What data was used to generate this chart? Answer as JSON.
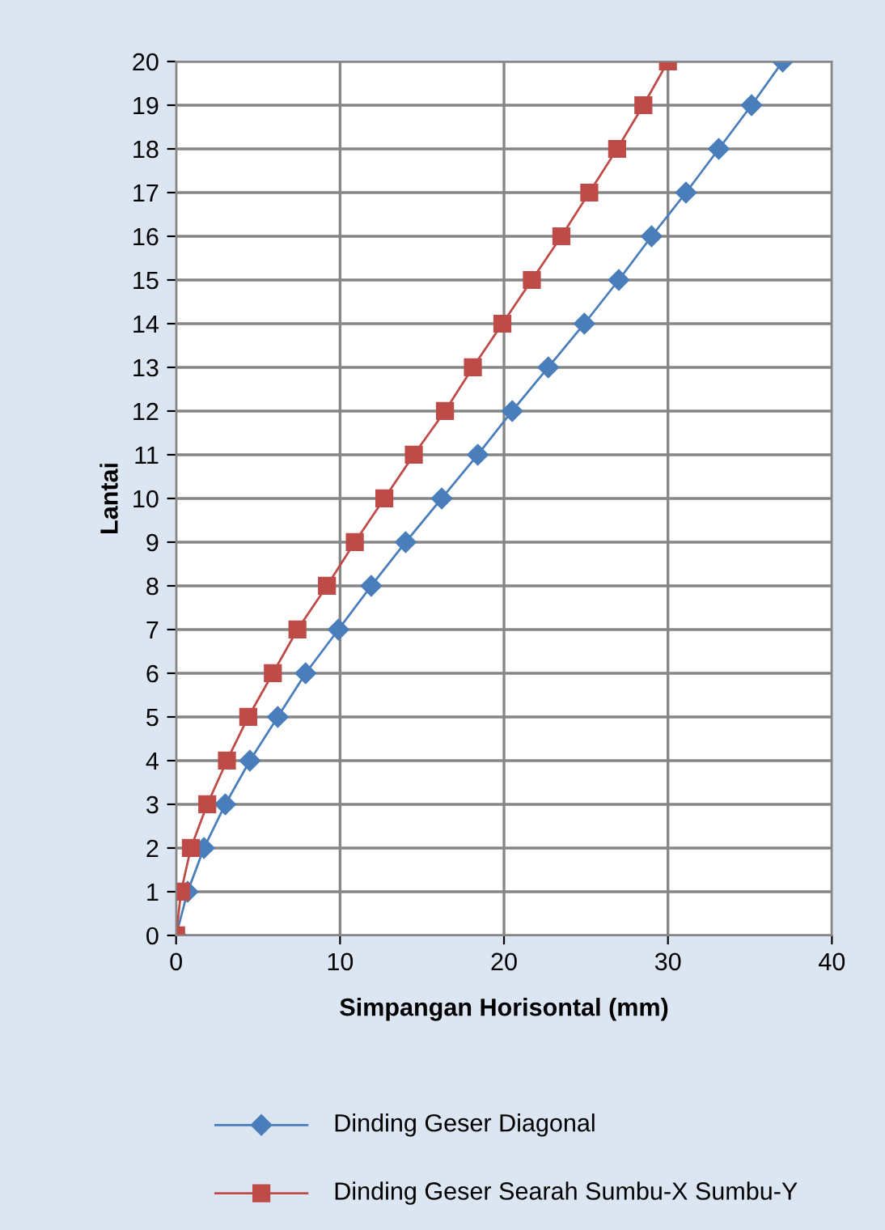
{
  "chart_data": {
    "type": "line",
    "xlabel": "Simpangan Horisontal (mm)",
    "ylabel": "Lantai",
    "xlim": [
      0,
      40
    ],
    "xticks": [
      0,
      10,
      20,
      30,
      40
    ],
    "ylim": [
      0,
      20
    ],
    "yticks": [
      0,
      1,
      2,
      3,
      4,
      5,
      6,
      7,
      8,
      9,
      10,
      11,
      12,
      13,
      14,
      15,
      16,
      17,
      18,
      19,
      20
    ],
    "grid": true,
    "legend": "bottom",
    "series": [
      {
        "name": "Dinding Geser Diagonal",
        "color": "#4a7ebb",
        "marker": "diamond",
        "x": [
          0,
          0.7,
          1.7,
          3.0,
          4.5,
          6.2,
          7.9,
          9.9,
          11.9,
          14.0,
          16.2,
          18.4,
          20.5,
          22.7,
          24.9,
          27.0,
          29.0,
          31.1,
          33.1,
          35.1,
          37.0
        ],
        "values": [
          0,
          1,
          2,
          3,
          4,
          5,
          6,
          7,
          8,
          9,
          10,
          11,
          12,
          13,
          14,
          15,
          16,
          17,
          18,
          19,
          20
        ]
      },
      {
        "name": "Dinding Geser Searah Sumbu-X Sumbu-Y",
        "color": "#be4b48",
        "marker": "square",
        "x": [
          0,
          0.3,
          0.9,
          1.9,
          3.1,
          4.4,
          5.9,
          7.4,
          9.2,
          10.9,
          12.7,
          14.5,
          16.4,
          18.1,
          19.9,
          21.7,
          23.5,
          25.2,
          26.9,
          28.5,
          30.0
        ],
        "values": [
          0,
          1,
          2,
          3,
          4,
          5,
          6,
          7,
          8,
          9,
          10,
          11,
          12,
          13,
          14,
          15,
          16,
          17,
          18,
          19,
          20
        ]
      }
    ]
  }
}
